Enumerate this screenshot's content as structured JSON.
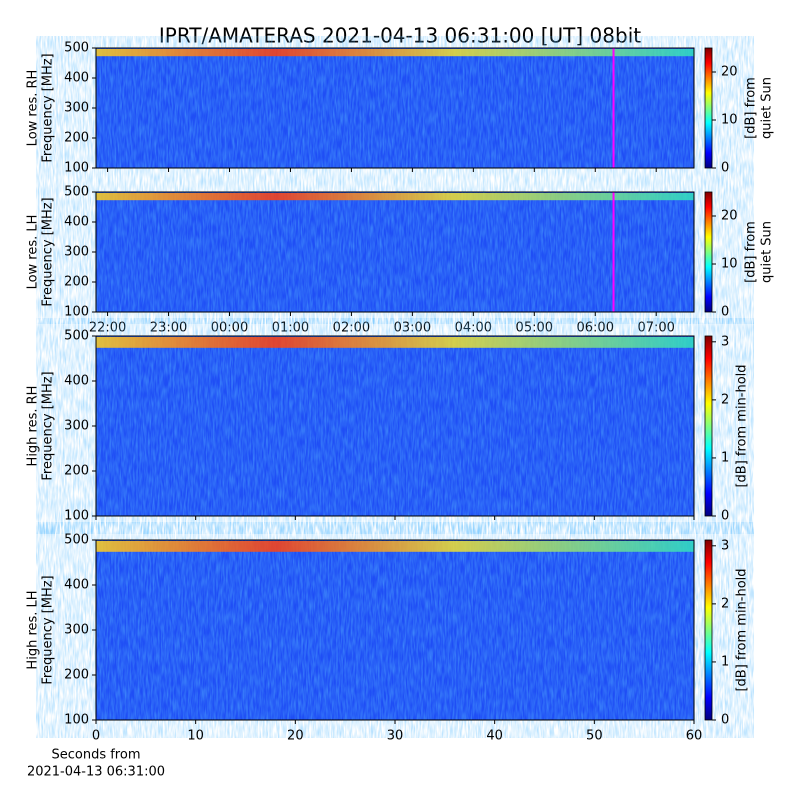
{
  "title": "IPRT/AMATERAS 2021-04-13 06:31:00 [UT]   08bit",
  "colormap": "jet",
  "chart_data": [
    {
      "type": "spectrogram",
      "ylabel": [
        "Low res. RH",
        "Frequency [MHz]"
      ],
      "ylim": [
        100,
        500
      ],
      "yticks": [
        100,
        200,
        300,
        400,
        500
      ],
      "xlim": [
        21.81,
        31.62
      ],
      "xticks": [
        {
          "value": 22,
          "label": "22:00"
        },
        {
          "value": 23,
          "label": "23:00"
        },
        {
          "value": 24,
          "label": "00:00"
        },
        {
          "value": 25,
          "label": "01:00"
        },
        {
          "value": 26,
          "label": "02:00"
        },
        {
          "value": 27,
          "label": "03:00"
        },
        {
          "value": 28,
          "label": "04:00"
        },
        {
          "value": 29,
          "label": "05:00"
        },
        {
          "value": 30,
          "label": "06:00"
        },
        {
          "value": 31,
          "label": "07:00"
        }
      ],
      "marker_x": 30.3,
      "marker_color": "#ff00ff",
      "colorbar": {
        "label": [
          "[dB] from",
          "quiet Sun"
        ],
        "lim": [
          0,
          25
        ],
        "ticks": [
          0,
          10,
          20
        ]
      }
    },
    {
      "type": "spectrogram",
      "ylabel": [
        "Low res. LH",
        "Frequency [MHz]"
      ],
      "ylim": [
        100,
        500
      ],
      "yticks": [
        100,
        200,
        300,
        400,
        500
      ],
      "xlim": [
        21.81,
        31.62
      ],
      "xticks": [
        {
          "value": 22,
          "label": "22:00"
        },
        {
          "value": 23,
          "label": "23:00"
        },
        {
          "value": 24,
          "label": "00:00"
        },
        {
          "value": 25,
          "label": "01:00"
        },
        {
          "value": 26,
          "label": "02:00"
        },
        {
          "value": 27,
          "label": "03:00"
        },
        {
          "value": 28,
          "label": "04:00"
        },
        {
          "value": 29,
          "label": "05:00"
        },
        {
          "value": 30,
          "label": "06:00"
        },
        {
          "value": 31,
          "label": "07:00"
        }
      ],
      "marker_x": 30.3,
      "marker_color": "#ff00ff",
      "colorbar": {
        "label": [
          "[dB] from",
          "quiet Sun"
        ],
        "lim": [
          0,
          25
        ],
        "ticks": [
          0,
          10,
          20
        ]
      }
    },
    {
      "type": "spectrogram",
      "ylabel": [
        "High res. RH",
        "Frequency [MHz]"
      ],
      "ylim": [
        100,
        500
      ],
      "yticks": [
        100,
        200,
        300,
        400,
        500
      ],
      "xlim": [
        0,
        60
      ],
      "xticks": [
        0,
        10,
        20,
        30,
        40,
        50,
        60
      ],
      "colorbar": {
        "label": [
          "[dB] from min-hold"
        ],
        "lim": [
          0,
          3.1
        ],
        "ticks": [
          0,
          1,
          2,
          3
        ]
      }
    },
    {
      "type": "spectrogram",
      "ylabel": [
        "High res. LH",
        "Frequency [MHz]"
      ],
      "ylim": [
        100,
        500
      ],
      "yticks": [
        100,
        200,
        300,
        400,
        500
      ],
      "xlim": [
        0,
        60
      ],
      "xticks": [
        0,
        10,
        20,
        30,
        40,
        50,
        60
      ],
      "xlabel": [
        "Seconds from",
        "2021-04-13 06:31:00"
      ],
      "colorbar": {
        "label": [
          "[dB] from min-hold"
        ],
        "lim": [
          0,
          3.1
        ],
        "ticks": [
          0,
          1,
          2,
          3
        ]
      }
    }
  ]
}
